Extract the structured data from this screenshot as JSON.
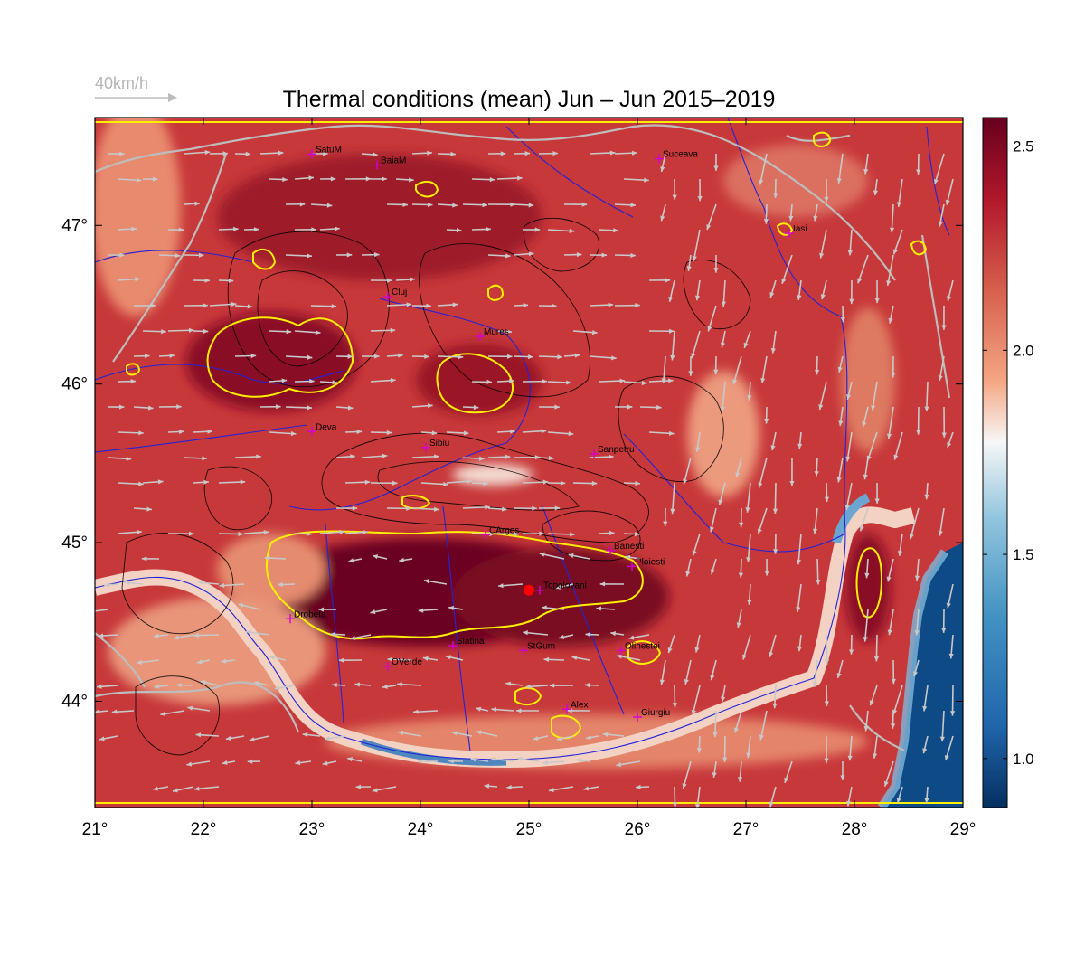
{
  "title": "Thermal conditions (mean) Jun – Jun  2015–2019",
  "wind_legend": {
    "label": "40km/h"
  },
  "x_ticks": [
    "21°",
    "22°",
    "23°",
    "24°",
    "25°",
    "26°",
    "27°",
    "28°",
    "29°"
  ],
  "y_ticks": [
    "47°",
    "46°",
    "45°",
    "44°"
  ],
  "colorbar": {
    "ticks": [
      "2.5",
      "2.0",
      "1.5",
      "1.0"
    ],
    "min": 0.88,
    "max": 2.57,
    "colors": [
      "#053061",
      "#2166ac",
      "#4393c3",
      "#92c5de",
      "#f7f7f7",
      "#f4a582",
      "#d6604d",
      "#b2182b",
      "#67001f"
    ]
  },
  "cities": [
    {
      "name": "SatuM",
      "lon": 23.0,
      "lat": 47.45
    },
    {
      "name": "BaiaM",
      "lon": 23.6,
      "lat": 47.38
    },
    {
      "name": "Suceava",
      "lon": 26.2,
      "lat": 47.42
    },
    {
      "name": "Iasi",
      "lon": 27.4,
      "lat": 46.95
    },
    {
      "name": "Cluj",
      "lon": 23.7,
      "lat": 46.55
    },
    {
      "name": "Mures",
      "lon": 24.55,
      "lat": 46.3
    },
    {
      "name": "Deva",
      "lon": 23.0,
      "lat": 45.7
    },
    {
      "name": "Sibiu",
      "lon": 24.05,
      "lat": 45.6
    },
    {
      "name": "Sanpetru",
      "lon": 25.6,
      "lat": 45.56
    },
    {
      "name": "CArges",
      "lon": 24.6,
      "lat": 45.05
    },
    {
      "name": "Banesti",
      "lon": 25.75,
      "lat": 44.95
    },
    {
      "name": "Ploiesti",
      "lon": 25.95,
      "lat": 44.85
    },
    {
      "name": "Topolovani",
      "lon": 25.1,
      "lat": 44.7
    },
    {
      "name": "Drobeta",
      "lon": 22.8,
      "lat": 44.52
    },
    {
      "name": "Slatina",
      "lon": 24.3,
      "lat": 44.35
    },
    {
      "name": "StGum",
      "lon": 24.95,
      "lat": 44.32
    },
    {
      "name": "Olinestei",
      "lon": 25.85,
      "lat": 44.32
    },
    {
      "name": "OVerde",
      "lon": 23.7,
      "lat": 44.22
    },
    {
      "name": "Alex",
      "lon": 25.35,
      "lat": 43.95
    },
    {
      "name": "Giurgiu",
      "lon": 26.0,
      "lat": 43.9
    }
  ],
  "red_dot_lon": 25.0,
  "red_dot_lat": 44.7
}
